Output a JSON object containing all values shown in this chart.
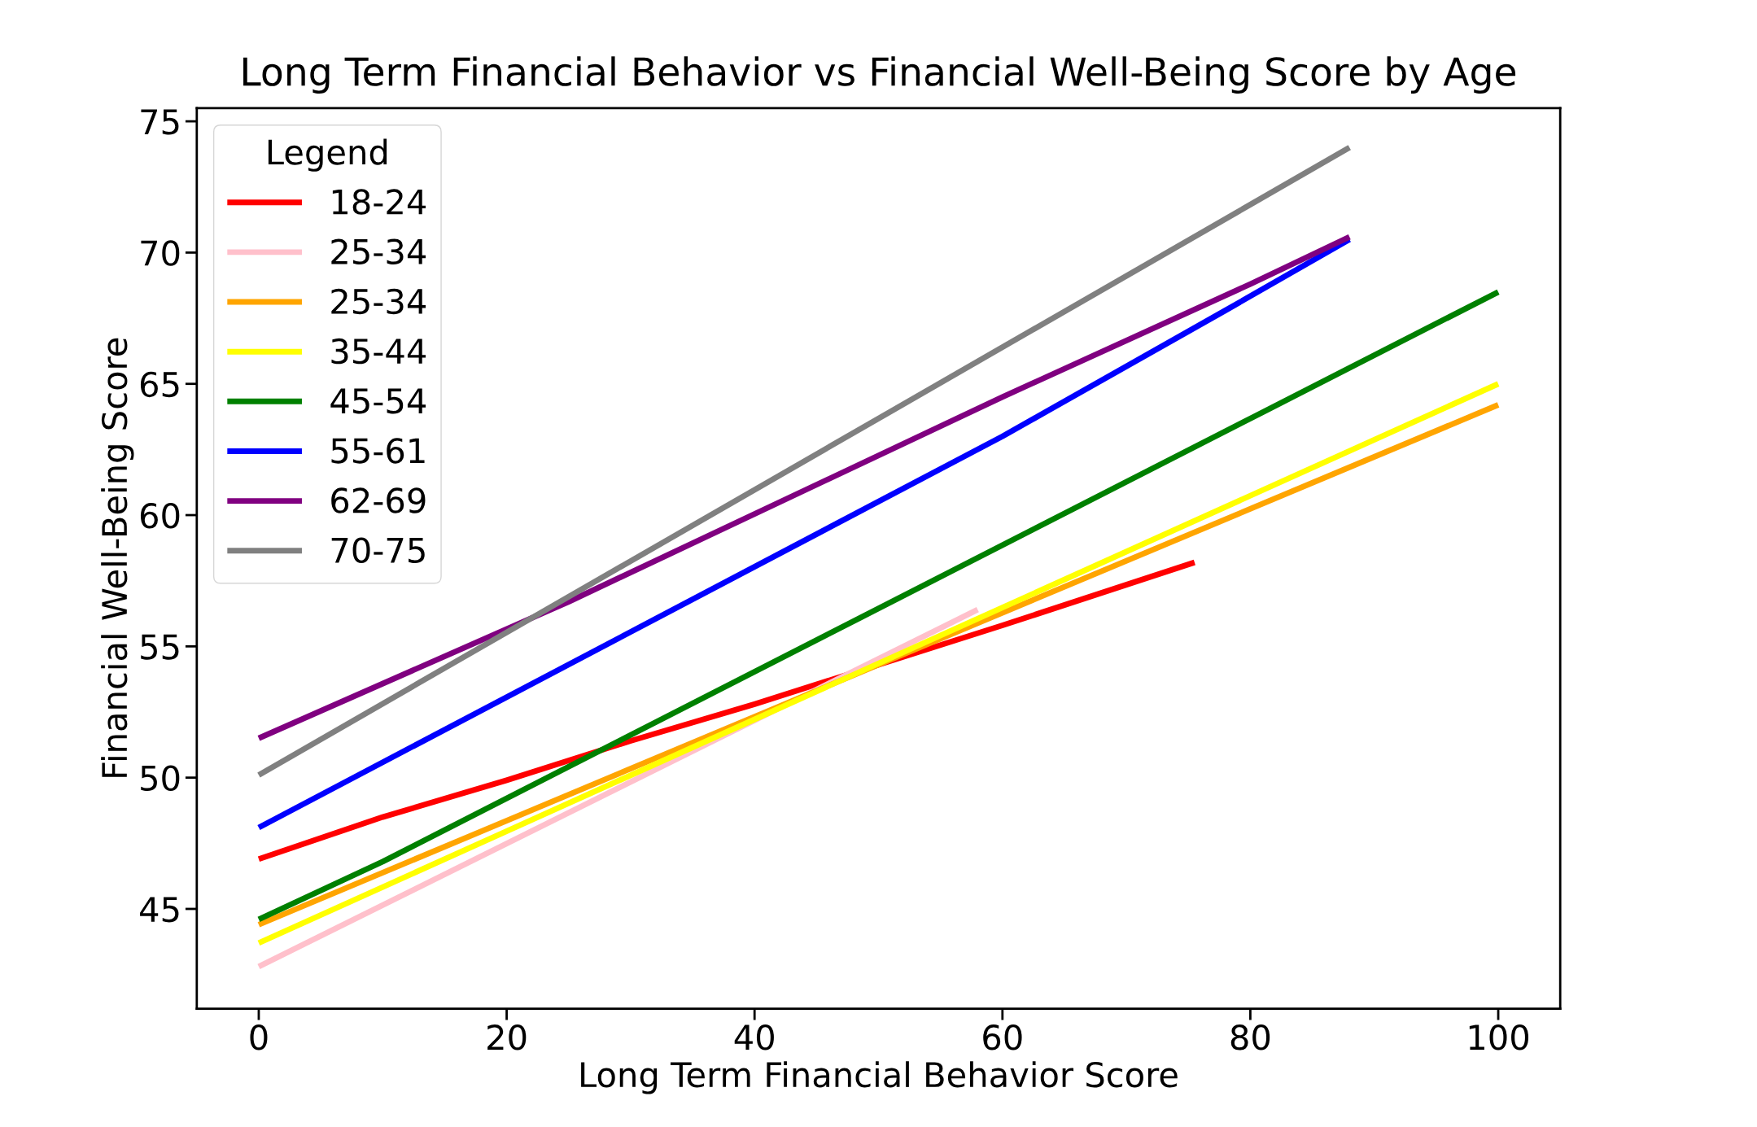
{
  "chart_data": {
    "type": "line",
    "title": "Long Term Financial Behavior vs Financial Well-Being Score by Age",
    "xlabel": "Long Term Financial Behavior Score",
    "ylabel": "Financial Well-Being Score",
    "legend_title": "Legend",
    "xlim": [
      -5,
      105
    ],
    "ylim": [
      41.2,
      75.5
    ],
    "xticks": [
      0,
      20,
      40,
      60,
      80,
      100
    ],
    "yticks": [
      45,
      50,
      55,
      60,
      65,
      70,
      75
    ],
    "grid": false,
    "legend": "top left",
    "marker": "none",
    "line_style": "solid",
    "series": [
      {
        "name": "18-24",
        "color": "#ff0000",
        "x": [
          0,
          10,
          20,
          30,
          40,
          60,
          75.5
        ],
        "values": [
          46.9,
          48.5,
          49.9,
          51.4,
          52.8,
          55.8,
          58.2
        ]
      },
      {
        "name": "25-34",
        "color": "#ffc0cb",
        "x": [
          0,
          58
        ],
        "values": [
          42.8,
          56.4
        ]
      },
      {
        "name": "25-34",
        "color": "#ffa500",
        "x": [
          0,
          100
        ],
        "values": [
          44.4,
          64.2
        ]
      },
      {
        "name": "35-44",
        "color": "#ffff00",
        "x": [
          0,
          100
        ],
        "values": [
          43.7,
          65.0
        ]
      },
      {
        "name": "45-54",
        "color": "#008000",
        "x": [
          0,
          10,
          100
        ],
        "values": [
          44.6,
          46.8,
          68.5
        ]
      },
      {
        "name": "55-61",
        "color": "#0000ff",
        "x": [
          0,
          60,
          78,
          88
        ],
        "values": [
          48.1,
          63.0,
          67.8,
          70.5
        ]
      },
      {
        "name": "62-69",
        "color": "#800080",
        "x": [
          0,
          25,
          60,
          80,
          88
        ],
        "values": [
          51.5,
          56.7,
          64.5,
          68.8,
          70.6
        ]
      },
      {
        "name": "70-75",
        "color": "#808080",
        "x": [
          0,
          88
        ],
        "values": [
          50.1,
          74.0
        ]
      }
    ]
  }
}
